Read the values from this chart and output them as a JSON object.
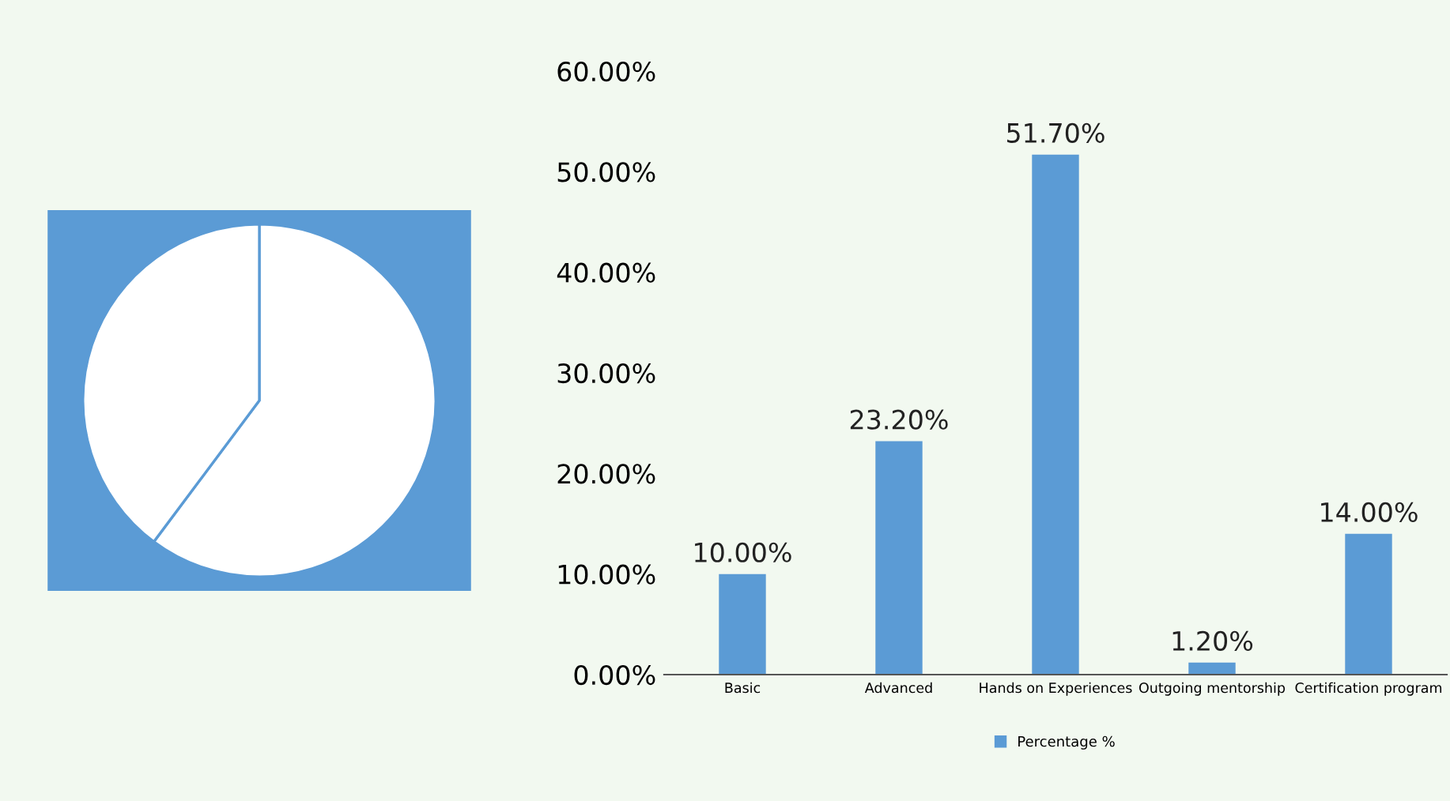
{
  "chart_data": [
    {
      "type": "pie",
      "categories": [
        null,
        null
      ],
      "values": [
        60.2,
        39.8
      ],
      "colors": [
        "#ffffff",
        "#ffffff"
      ]
    },
    {
      "type": "bar",
      "categories": [
        "Basic",
        "Advanced",
        "Hands on Experiences",
        "Outgoing mentorship",
        "Certification program"
      ],
      "series": [
        {
          "name": "Percentage %",
          "color": "#5b9bd5",
          "values": [
            10.0,
            23.2,
            51.7,
            1.2,
            14.0
          ],
          "value_labels": [
            "10.00%",
            "23.20%",
            "51.70%",
            "1.20%",
            "14.00%"
          ]
        }
      ],
      "ylim": [
        0,
        60
      ],
      "yticks": [
        {
          "value": 0,
          "label": "0.00%"
        },
        {
          "value": 10,
          "label": "10.00%"
        },
        {
          "value": 20,
          "label": "20.00%"
        },
        {
          "value": 30,
          "label": "30.00%"
        },
        {
          "value": 40,
          "label": "40.00%"
        },
        {
          "value": 50,
          "label": "50.00%"
        },
        {
          "value": 60,
          "label": "60.00%"
        }
      ],
      "grid": false,
      "legend": "bottom"
    }
  ]
}
